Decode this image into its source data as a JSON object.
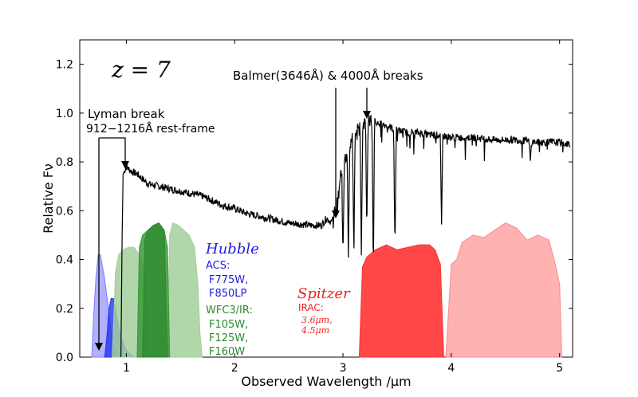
{
  "chart_data": {
    "type": "line",
    "redshift_label": "z = 7",
    "xlabel": "Observed Wavelength /μm",
    "ylabel": "Relative Fν",
    "xlim": [
      0.57,
      5.12
    ],
    "ylim": [
      0.0,
      1.3
    ],
    "xticks": [
      1,
      2,
      3,
      4,
      5
    ],
    "yticks": [
      0.0,
      0.2,
      0.4,
      0.6,
      0.8,
      1.0,
      1.2
    ],
    "grid": false,
    "spectrum": {
      "x": [
        0.95,
        0.96,
        0.97,
        1.0,
        1.05,
        1.1,
        1.15,
        1.2,
        1.3,
        1.4,
        1.5,
        1.6,
        1.7,
        1.8,
        1.9,
        2.0,
        2.1,
        2.2,
        2.3,
        2.4,
        2.5,
        2.6,
        2.7,
        2.8,
        2.85,
        2.9,
        2.95,
        3.0,
        3.05,
        3.1,
        3.15,
        3.2,
        3.3,
        3.4,
        3.5,
        3.6,
        3.7,
        3.8,
        3.9,
        4.0,
        4.2,
        4.4,
        4.6,
        4.8,
        5.0,
        5.1
      ],
      "y": [
        0.0,
        0.45,
        0.75,
        0.78,
        0.76,
        0.75,
        0.73,
        0.71,
        0.7,
        0.69,
        0.68,
        0.67,
        0.66,
        0.64,
        0.62,
        0.61,
        0.59,
        0.58,
        0.57,
        0.56,
        0.55,
        0.545,
        0.54,
        0.54,
        0.57,
        0.55,
        0.62,
        0.82,
        0.85,
        0.9,
        0.94,
        0.97,
        0.96,
        0.95,
        0.93,
        0.92,
        0.92,
        0.91,
        0.91,
        0.9,
        0.9,
        0.89,
        0.89,
        0.88,
        0.88,
        0.87
      ],
      "absorption_lines": [
        {
          "x": 3.0,
          "depth": 0.4
        },
        {
          "x": 3.05,
          "depth": 0.45
        },
        {
          "x": 3.1,
          "depth": 0.5
        },
        {
          "x": 3.17,
          "depth": 0.55
        },
        {
          "x": 3.22,
          "depth": 0.45
        },
        {
          "x": 3.28,
          "depth": 0.6
        },
        {
          "x": 3.48,
          "depth": 0.5
        },
        {
          "x": 3.91,
          "depth": 0.38
        },
        {
          "x": 4.73,
          "depth": 0.08
        }
      ]
    },
    "filters": [
      {
        "name": "F775W",
        "x": [
          0.68,
          0.7,
          0.72,
          0.74,
          0.76,
          0.8,
          0.84,
          0.86,
          0.88,
          0.9,
          0.92
        ],
        "y": [
          0,
          0.18,
          0.33,
          0.42,
          0.42,
          0.32,
          0.18,
          0.1,
          0.05,
          0.02,
          0
        ],
        "color": "#7b7bff",
        "opacity": 0.6
      },
      {
        "name": "F850LP",
        "x": [
          0.8,
          0.82,
          0.84,
          0.86,
          0.88,
          0.9,
          0.93,
          0.96,
          1.0,
          1.04,
          1.07
        ],
        "y": [
          0,
          0.08,
          0.2,
          0.24,
          0.24,
          0.2,
          0.12,
          0.07,
          0.03,
          0.01,
          0
        ],
        "color": "#2233ee",
        "opacity": 0.8
      },
      {
        "name": "F160W",
        "x": [
          1.38,
          1.4,
          1.43,
          1.48,
          1.53,
          1.58,
          1.63,
          1.66,
          1.68,
          1.7
        ],
        "y": [
          0,
          0.5,
          0.55,
          0.54,
          0.52,
          0.5,
          0.45,
          0.3,
          0.1,
          0
        ],
        "color": "#a3cf9b",
        "opacity": 0.85
      },
      {
        "name": "F105W",
        "x": [
          0.87,
          0.9,
          0.93,
          0.97,
          1.02,
          1.07,
          1.12,
          1.17,
          1.2
        ],
        "y": [
          0,
          0.35,
          0.42,
          0.44,
          0.45,
          0.45,
          0.42,
          0.35,
          0
        ],
        "color": "#a3cf9b",
        "opacity": 0.85
      },
      {
        "name": "F125W",
        "x": [
          1.1,
          1.12,
          1.15,
          1.2,
          1.25,
          1.3,
          1.35,
          1.38,
          1.4
        ],
        "y": [
          0,
          0.45,
          0.5,
          0.52,
          0.54,
          0.55,
          0.52,
          0.45,
          0
        ],
        "color": "#3a9a3a",
        "opacity": 0.85
      },
      {
        "name": "F125W-core",
        "x": [
          1.15,
          1.17,
          1.2,
          1.25,
          1.3,
          1.35,
          1.38
        ],
        "y": [
          0,
          0.48,
          0.52,
          0.54,
          0.55,
          0.52,
          0
        ],
        "color": "#2b8a2b",
        "opacity": 0.75
      },
      {
        "name": "IRAC 3.6",
        "x": [
          3.15,
          3.18,
          3.22,
          3.3,
          3.4,
          3.5,
          3.6,
          3.7,
          3.8,
          3.85,
          3.9,
          3.93
        ],
        "y": [
          0,
          0.37,
          0.41,
          0.44,
          0.46,
          0.44,
          0.45,
          0.46,
          0.46,
          0.44,
          0.38,
          0
        ],
        "color": "#ff3333",
        "opacity": 0.9
      },
      {
        "name": "IRAC 4.5",
        "x": [
          3.95,
          4.0,
          4.05,
          4.1,
          4.2,
          4.3,
          4.4,
          4.5,
          4.6,
          4.7,
          4.8,
          4.9,
          4.95,
          5.0,
          5.02
        ],
        "y": [
          0,
          0.38,
          0.4,
          0.47,
          0.5,
          0.49,
          0.52,
          0.55,
          0.53,
          0.48,
          0.5,
          0.48,
          0.4,
          0.3,
          0
        ],
        "color": "#ff8888",
        "opacity": 0.65
      }
    ],
    "annotations": {
      "lyman_title": "Lyman break",
      "lyman_sub": "912−1216Å rest-frame",
      "balmer": "Balmer(3646Å) & 4000Å breaks",
      "hubble_title": "Hubble",
      "acs": "ACS:",
      "acs_f1": "F775W,",
      "acs_f2": "F850LP",
      "wfc": "WFC3/IR:",
      "wfc_f1": "F105W,",
      "wfc_f2": "F125W,",
      "wfc_f3": "F160W",
      "spitzer_title": "Spitzer",
      "irac": "IRAC:",
      "irac_f1": "3.6μm,",
      "irac_f2": "4.5μm"
    },
    "colors": {
      "hubble_blue": "#2020dd",
      "wfc_green": "#2b8a2b",
      "spitzer_red": "#ee2222",
      "line": "#000000"
    }
  }
}
